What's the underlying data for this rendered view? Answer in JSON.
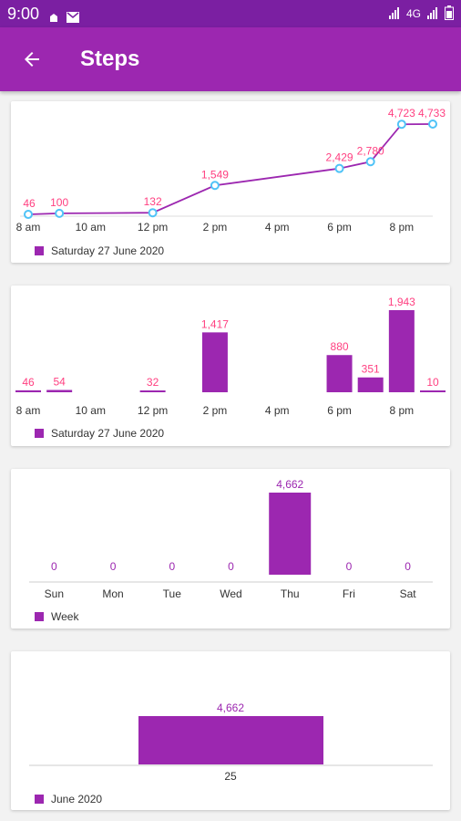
{
  "status_bar": {
    "time": "9:00",
    "icons": [
      "notification-icon",
      "mail-icon",
      "signal-icon",
      "wifi-icon",
      "battery-icon"
    ],
    "network": "4G"
  },
  "app_bar": {
    "title": "Steps",
    "back_icon": "arrow-back-icon"
  },
  "colors": {
    "primary": "#9c27b0",
    "primary_dark": "#7b1fa2",
    "point": "#4fc3f7",
    "value_text": "#ff4081"
  },
  "chart_data": [
    {
      "type": "line",
      "x_tick_labels": [
        "8 am",
        "10 am",
        "12 pm",
        "2 pm",
        "4 pm",
        "6 pm",
        "8 pm"
      ],
      "x": [
        8,
        9,
        12,
        14,
        18,
        19,
        20,
        21
      ],
      "values": [
        46,
        100,
        132,
        1549,
        2429,
        2780,
        4723,
        4733
      ],
      "value_labels": [
        "46",
        "100",
        "132",
        "1,549",
        "2,429",
        "2,780",
        "4,723",
        "4,733"
      ],
      "series_name": "Saturday  27  June  2020",
      "xlim": [
        8,
        21
      ],
      "grid": false
    },
    {
      "type": "bar",
      "x_tick_labels": [
        "8 am",
        "10 am",
        "12 pm",
        "2 pm",
        "4 pm",
        "6 pm",
        "8 pm"
      ],
      "x": [
        8,
        9,
        12,
        14,
        18,
        19,
        20,
        21
      ],
      "values": [
        46,
        54,
        32,
        1417,
        880,
        351,
        1943,
        10
      ],
      "value_labels": [
        "46",
        "54",
        "32",
        "1,417",
        "880",
        "351",
        "1,943",
        "10"
      ],
      "series_name": "Saturday  27  June  2020",
      "grid": false
    },
    {
      "type": "bar",
      "categories": [
        "Sun",
        "Mon",
        "Tue",
        "Wed",
        "Thu",
        "Fri",
        "Sat"
      ],
      "values": [
        0,
        0,
        0,
        0,
        4662,
        0,
        0
      ],
      "value_labels": [
        "0",
        "0",
        "0",
        "0",
        "4,662",
        "0",
        "0"
      ],
      "series_name": "Week",
      "grid": false
    },
    {
      "type": "bar",
      "categories": [
        "25"
      ],
      "values": [
        4662
      ],
      "value_labels": [
        "4,662"
      ],
      "series_name": "June 2020",
      "grid": false
    }
  ]
}
